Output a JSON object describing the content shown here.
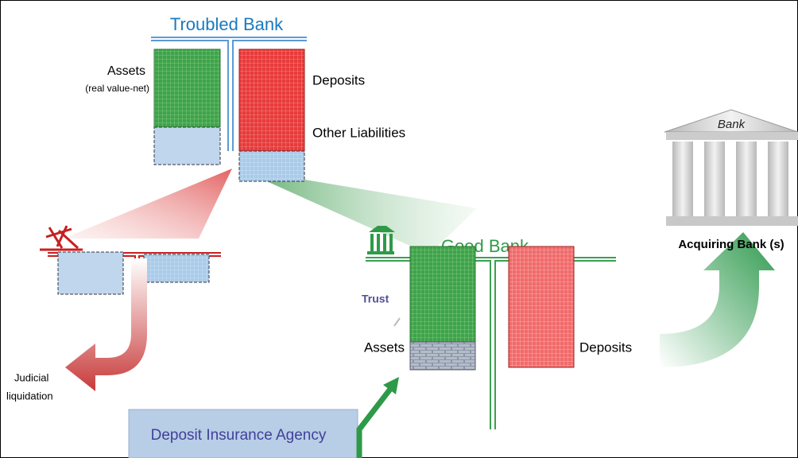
{
  "troubled_bank": {
    "title": "Troubled Bank",
    "assets_label": "Assets",
    "assets_note": "(real value-net)",
    "deposits_label": "Deposits",
    "other_liabilities_label": "Other Liabilities"
  },
  "acquiring_bank": {
    "building_label": "Bank",
    "title": "Acquiring Bank (s)"
  },
  "good_bank": {
    "title": "Good Bank",
    "trust_label": "Trust",
    "assets_label": "Assets",
    "deposits_label": "Deposits"
  },
  "liquidation": {
    "lines": [
      "Judicial",
      "liquidation"
    ]
  },
  "agency": {
    "label": "Deposit Insurance Agency"
  }
}
